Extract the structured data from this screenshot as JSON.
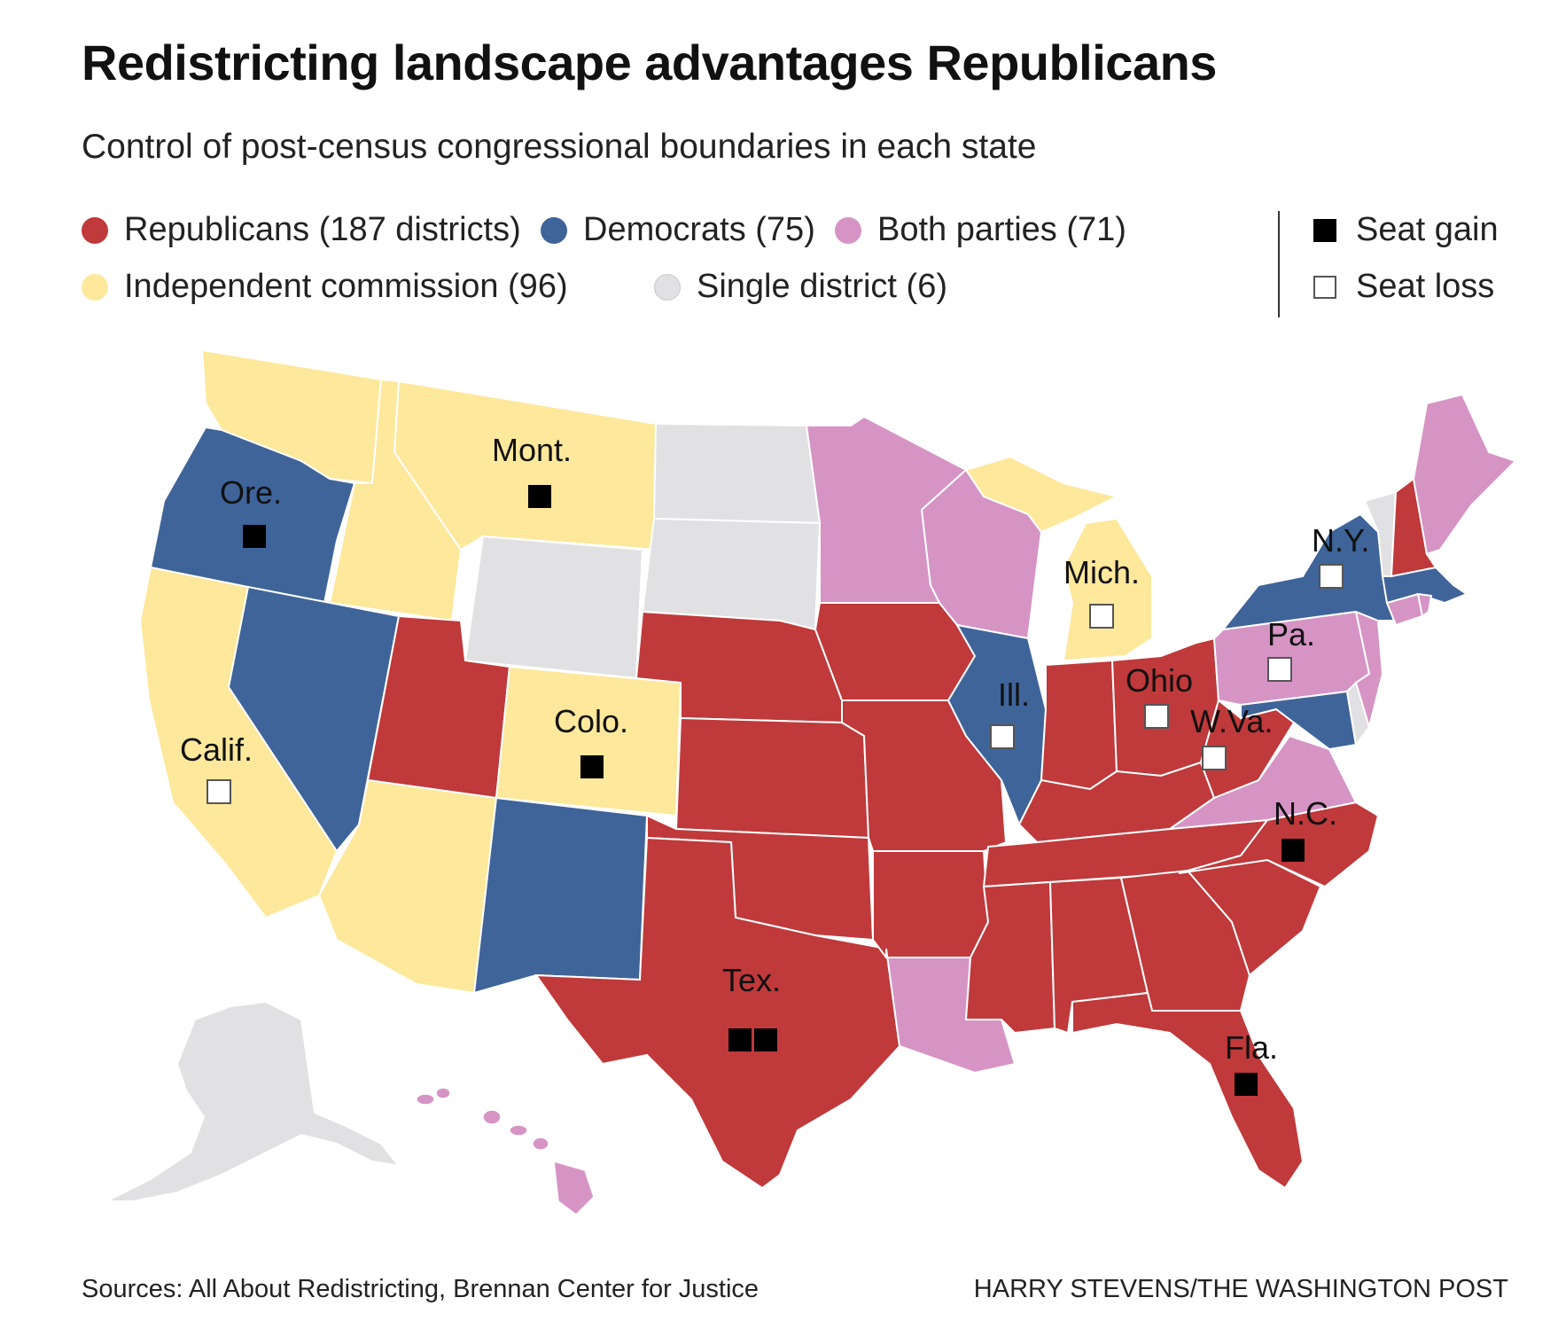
{
  "title": "Redistricting landscape advantages Republicans",
  "subtitle": "Control of post-census congressional boundaries in each state",
  "colors": {
    "republicans": "#c0393b",
    "democrats": "#3f6499",
    "both": "#d694c5",
    "independent": "#fde89b",
    "single": "#e1e1e3"
  },
  "legend": {
    "republicans": "Republicans (187 districts)",
    "democrats": "Democrats (75)",
    "both": "Both parties (71)",
    "independent": "Independent commission (96)",
    "single": "Single district (6)",
    "seat_gain": "Seat gain",
    "seat_loss": "Seat loss"
  },
  "labels": {
    "ore": "Ore.",
    "mont": "Mont.",
    "calif": "Calif.",
    "colo": "Colo.",
    "tex": "Tex.",
    "mich": "Mich.",
    "ill": "Ill.",
    "ohio": "Ohio",
    "wva": "W.Va.",
    "pa": "Pa.",
    "ny": "N.Y.",
    "nc": "N.C.",
    "fla": "Fla."
  },
  "seat_changes": {
    "Ore.": 1,
    "Mont.": 1,
    "Colo.": 1,
    "Tex.": 2,
    "N.C.": 1,
    "Fla.": 1,
    "Calif.": -1,
    "Mich.": -1,
    "Ill.": -1,
    "Ohio": -1,
    "W.Va.": -1,
    "Pa.": -1,
    "N.Y.": -1
  },
  "footer": {
    "sources": "Sources: All About Redistricting, Brennan Center for Justice",
    "credit": "HARRY STEVENS/THE WASHINGTON POST"
  }
}
